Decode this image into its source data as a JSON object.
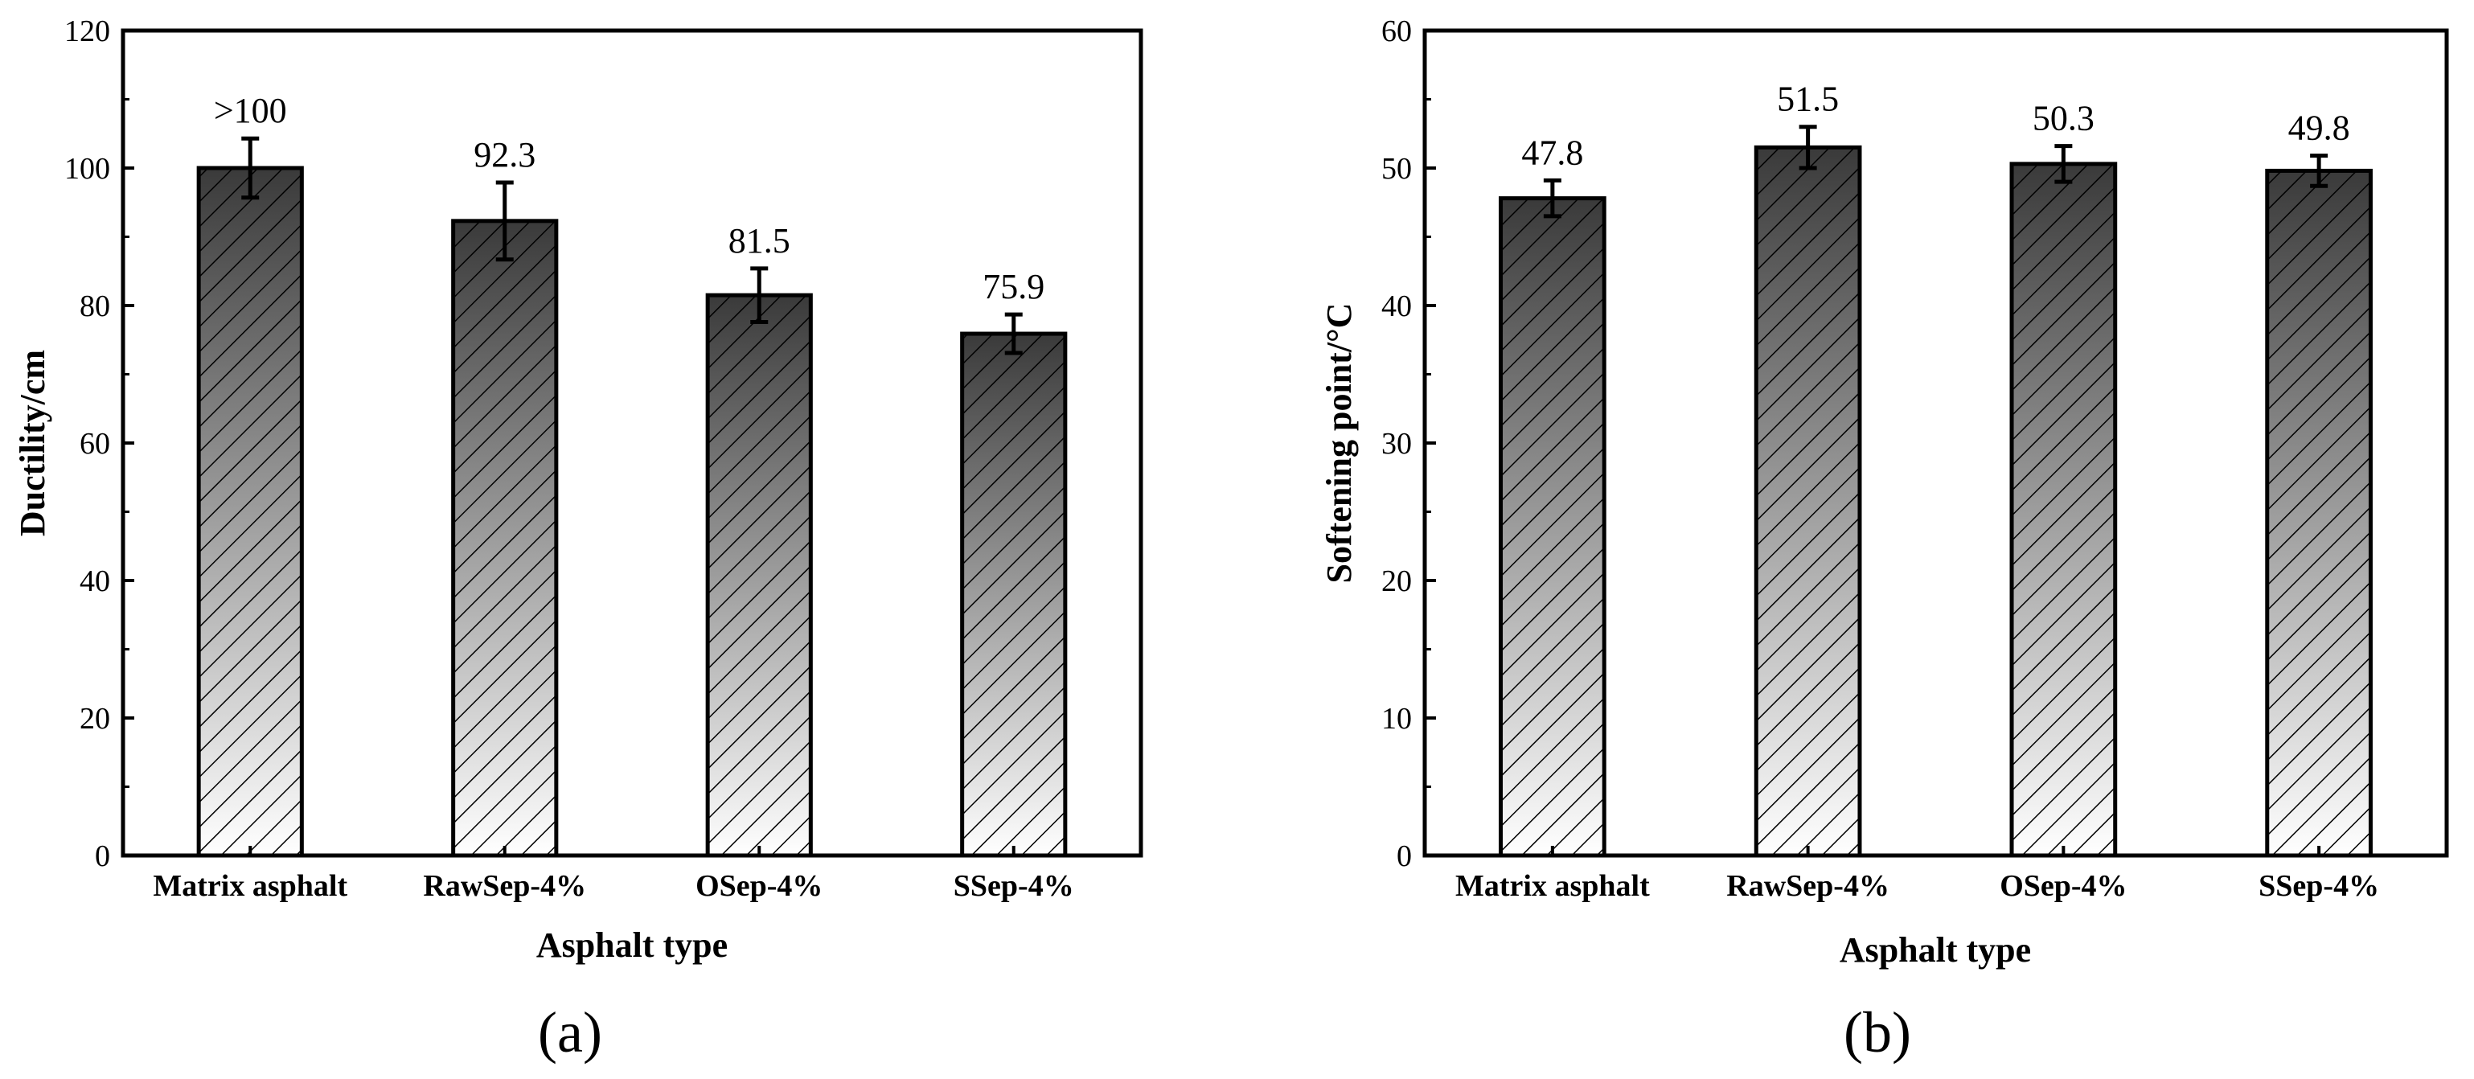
{
  "figure": {
    "panels": [
      "(a)",
      "(b)"
    ]
  },
  "chart_data": [
    {
      "type": "bar",
      "panel_label": "(a)",
      "title": "",
      "xlabel": "Asphalt type",
      "ylabel": "Ductility/cm",
      "categories": [
        "Matrix asphalt",
        "RawSep-4%",
        "OSep-4%",
        "SSep-4%"
      ],
      "values": [
        100,
        92.3,
        81.5,
        75.9
      ],
      "errors": [
        4.3,
        5.6,
        3.9,
        2.8
      ],
      "value_labels": [
        ">100",
        "92.3",
        "81.5",
        "75.9"
      ],
      "ylim": [
        0,
        120
      ],
      "yticks": [
        0,
        20,
        40,
        60,
        80,
        100,
        120
      ],
      "grid": false,
      "legend": "none",
      "bar_fill": "gradient dark-to-light with diagonal hatch"
    },
    {
      "type": "bar",
      "panel_label": "(b)",
      "title": "",
      "xlabel": "Asphalt type",
      "ylabel": "Softening point/°C",
      "categories": [
        "Matrix asphalt",
        "RawSep-4%",
        "OSep-4%",
        "SSep-4%"
      ],
      "values": [
        47.8,
        51.5,
        50.3,
        49.8
      ],
      "errors": [
        1.3,
        1.5,
        1.3,
        1.1
      ],
      "value_labels": [
        "47.8",
        "51.5",
        "50.3",
        "49.8"
      ],
      "ylim": [
        0,
        60
      ],
      "yticks": [
        0,
        10,
        20,
        30,
        40,
        50,
        60
      ],
      "grid": false,
      "legend": "none",
      "bar_fill": "gradient dark-to-light with diagonal hatch"
    }
  ],
  "colors": {
    "bar_top": "#3a3a3a",
    "bar_bottom": "#ffffff",
    "hatch": "#000000",
    "axis": "#000000"
  }
}
